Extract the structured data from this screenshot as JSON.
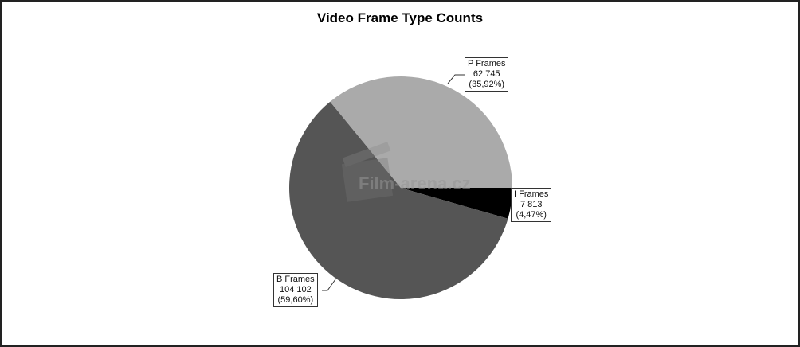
{
  "chart_data": {
    "type": "pie",
    "title": "Video Frame Type Counts",
    "slices": [
      {
        "name": "I Frames",
        "value": 7813,
        "value_label": "7 813",
        "percent_label": "(4,47%)",
        "color": "#000000"
      },
      {
        "name": "B Frames",
        "value": 104102,
        "value_label": "104 102",
        "percent_label": "(59,60%)",
        "color": "#555555"
      },
      {
        "name": "P Frames",
        "value": 62745,
        "value_label": "62 745",
        "percent_label": "(35,92%)",
        "color": "#aaaaaa"
      }
    ],
    "start_angle": "3 o'clock",
    "direction": "clockwise",
    "legend": "none"
  },
  "watermark": {
    "text": "Film-arena.cz"
  }
}
